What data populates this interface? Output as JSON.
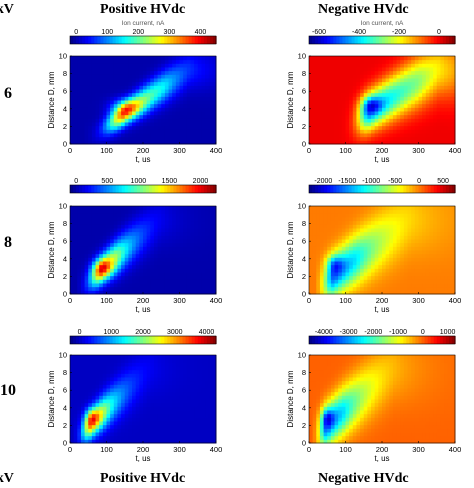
{
  "headers": {
    "corner_top": "kV",
    "corner_bottom": "kV",
    "positive": "Positive HVdc",
    "negative": "Negative HVdc"
  },
  "rows": [
    {
      "kv": "6"
    },
    {
      "kv": "8"
    },
    {
      "kv": "10"
    }
  ],
  "chart_data": [
    {
      "type": "heatmap",
      "row": "6",
      "polarity": "positive",
      "colorbar_label": "Ion current, nA",
      "colorbar_ticks": [
        0,
        100,
        200,
        300,
        400
      ],
      "clim": [
        -20,
        450
      ],
      "xlabel": "t, us",
      "ylabel": "Distance D, mm",
      "xlim": [
        0,
        400
      ],
      "ylim": [
        0,
        10
      ],
      "xticks": [
        0,
        100,
        200,
        300,
        400
      ],
      "yticks": [
        0,
        2,
        4,
        6,
        8,
        10
      ],
      "peak": {
        "t": 150,
        "d": 4.2,
        "value": 420
      },
      "background_value": 0
    },
    {
      "type": "heatmap",
      "row": "6",
      "polarity": "negative",
      "colorbar_label": "Ion current, nA",
      "colorbar_ticks": [
        -600,
        -400,
        -200,
        0
      ],
      "clim": [
        -650,
        80
      ],
      "xlabel": "t, us",
      "ylabel": "Distance D, mm",
      "xlim": [
        0,
        400
      ],
      "ylim": [
        0,
        10
      ],
      "xticks": [
        0,
        100,
        200,
        300,
        400
      ],
      "yticks": [
        0,
        2,
        4,
        6,
        8,
        10
      ],
      "peak": {
        "t": 170,
        "d": 4.5,
        "value": -620
      },
      "background_value": 0
    },
    {
      "type": "heatmap",
      "row": "8",
      "polarity": "positive",
      "colorbar_label": "",
      "colorbar_ticks": [
        0,
        500,
        1000,
        1500,
        2000
      ],
      "clim": [
        -100,
        2250
      ],
      "xlabel": "t, us",
      "ylabel": "Distance D, mm",
      "xlim": [
        0,
        400
      ],
      "ylim": [
        0,
        10
      ],
      "xticks": [
        0,
        100,
        200,
        300,
        400
      ],
      "yticks": [
        0,
        2,
        4,
        6,
        8,
        10
      ],
      "peak": {
        "t": 90,
        "d": 3.0,
        "value": 2100
      },
      "background_value": 0
    },
    {
      "type": "heatmap",
      "row": "8",
      "polarity": "negative",
      "colorbar_label": "",
      "colorbar_ticks": [
        -2000,
        -1500,
        -1000,
        -500,
        0,
        500
      ],
      "clim": [
        -2300,
        750
      ],
      "xlabel": "t, us",
      "ylabel": "Distance D, mm",
      "xlim": [
        0,
        400
      ],
      "ylim": [
        0,
        10
      ],
      "xticks": [
        0,
        100,
        200,
        300,
        400
      ],
      "yticks": [
        0,
        2,
        4,
        6,
        8,
        10
      ],
      "peak": {
        "t": 70,
        "d": 3.5,
        "value": -2200
      },
      "background_value": 0
    },
    {
      "type": "heatmap",
      "row": "10",
      "polarity": "positive",
      "colorbar_label": "",
      "colorbar_ticks": [
        0,
        1000,
        2000,
        3000,
        4000
      ],
      "clim": [
        -300,
        4300
      ],
      "xlabel": "t, us",
      "ylabel": "Distance D, mm",
      "xlim": [
        0,
        400
      ],
      "ylim": [
        0,
        10
      ],
      "xticks": [
        0,
        100,
        200,
        300,
        400
      ],
      "yticks": [
        0,
        2,
        4,
        6,
        8,
        10
      ],
      "peak": {
        "t": 60,
        "d": 3.0,
        "value": 4100
      },
      "background_value": 0
    },
    {
      "type": "heatmap",
      "row": "10",
      "polarity": "negative",
      "colorbar_label": "",
      "colorbar_ticks": [
        -4000,
        -3000,
        -2000,
        -1000,
        0,
        1000
      ],
      "clim": [
        -4600,
        1300
      ],
      "xlabel": "t, us",
      "ylabel": "Distance D, mm",
      "xlim": [
        0,
        400
      ],
      "ylim": [
        0,
        10
      ],
      "xticks": [
        0,
        100,
        200,
        300,
        400
      ],
      "yticks": [
        0,
        2,
        4,
        6,
        8,
        10
      ],
      "peak": {
        "t": 50,
        "d": 3.0,
        "value": -4500
      },
      "background_value": 0
    }
  ]
}
